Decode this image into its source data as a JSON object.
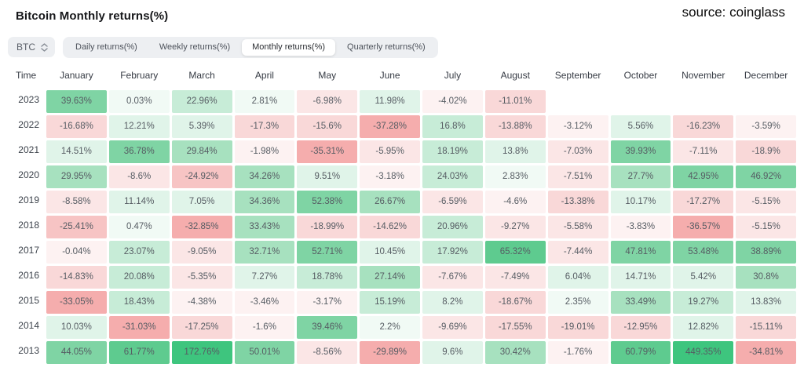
{
  "page": {
    "title": "Bitcoin Monthly returns(%)",
    "source": "source: coinglass"
  },
  "toolbar": {
    "symbol_select": {
      "value": "BTC"
    },
    "tabs": [
      {
        "label": "Daily returns(%)",
        "active": false
      },
      {
        "label": "Weekly returns(%)",
        "active": false
      },
      {
        "label": "Monthly returns(%)",
        "active": true
      },
      {
        "label": "Quarterly returns(%)",
        "active": false
      }
    ]
  },
  "chart_data": {
    "type": "heatmap",
    "title": "Bitcoin Monthly returns(%)",
    "unit": "%",
    "columns": [
      "Time",
      "January",
      "February",
      "March",
      "April",
      "May",
      "June",
      "July",
      "August",
      "September",
      "October",
      "November",
      "December"
    ],
    "rows": [
      {
        "year": "2023",
        "values": [
          39.63,
          0.03,
          22.96,
          2.81,
          -6.98,
          11.98,
          -4.02,
          -11.01,
          null,
          null,
          null,
          null
        ]
      },
      {
        "year": "2022",
        "values": [
          -16.68,
          12.21,
          5.39,
          -17.3,
          -15.6,
          -37.28,
          16.8,
          -13.88,
          -3.12,
          5.56,
          -16.23,
          -3.59
        ]
      },
      {
        "year": "2021",
        "values": [
          14.51,
          36.78,
          29.84,
          -1.98,
          -35.31,
          -5.95,
          18.19,
          13.8,
          -7.03,
          39.93,
          -7.11,
          -18.9
        ]
      },
      {
        "year": "2020",
        "values": [
          29.95,
          -8.6,
          -24.92,
          34.26,
          9.51,
          -3.18,
          24.03,
          2.83,
          -7.51,
          27.7,
          42.95,
          46.92
        ]
      },
      {
        "year": "2019",
        "values": [
          -8.58,
          11.14,
          7.05,
          34.36,
          52.38,
          26.67,
          -6.59,
          -4.6,
          -13.38,
          10.17,
          -17.27,
          -5.15
        ]
      },
      {
        "year": "2018",
        "values": [
          -25.41,
          0.47,
          -32.85,
          33.43,
          -18.99,
          -14.62,
          20.96,
          -9.27,
          -5.58,
          -3.83,
          -36.57,
          -5.15
        ]
      },
      {
        "year": "2017",
        "values": [
          -0.04,
          23.07,
          -9.05,
          32.71,
          52.71,
          10.45,
          17.92,
          65.32,
          -7.44,
          47.81,
          53.48,
          38.89
        ]
      },
      {
        "year": "2016",
        "values": [
          -14.83,
          20.08,
          -5.35,
          7.27,
          18.78,
          27.14,
          -7.67,
          -7.49,
          6.04,
          14.71,
          5.42,
          30.8
        ]
      },
      {
        "year": "2015",
        "values": [
          -33.05,
          18.43,
          -4.38,
          -3.46,
          -3.17,
          15.19,
          8.2,
          -18.67,
          2.35,
          33.49,
          19.27,
          13.83
        ]
      },
      {
        "year": "2014",
        "values": [
          10.03,
          -31.03,
          -17.25,
          -1.6,
          39.46,
          2.2,
          -9.69,
          -17.55,
          -19.01,
          -12.95,
          12.82,
          -15.11
        ]
      },
      {
        "year": "2013",
        "values": [
          44.05,
          61.77,
          172.76,
          50.01,
          -8.56,
          -29.89,
          9.6,
          30.42,
          -1.76,
          60.79,
          449.35,
          -34.81
        ]
      }
    ],
    "heat_scale": [
      {
        "min": 100,
        "color": "#3ec57e"
      },
      {
        "min": 55,
        "color": "#5ecb8f"
      },
      {
        "min": 35,
        "color": "#7fd4a4"
      },
      {
        "min": 25,
        "color": "#a7e1bf"
      },
      {
        "min": 15,
        "color": "#c7ecd7"
      },
      {
        "min": 5,
        "color": "#e0f4e9"
      },
      {
        "min": 0,
        "color": "#f1faf5"
      },
      {
        "min": -5,
        "color": "#fdf2f2"
      },
      {
        "min": -10,
        "color": "#fbe6e6"
      },
      {
        "min": -20,
        "color": "#f9d8d8"
      },
      {
        "min": -28,
        "color": "#f7c4c4"
      },
      {
        "min": -10000,
        "color": "#f5adad"
      }
    ]
  }
}
